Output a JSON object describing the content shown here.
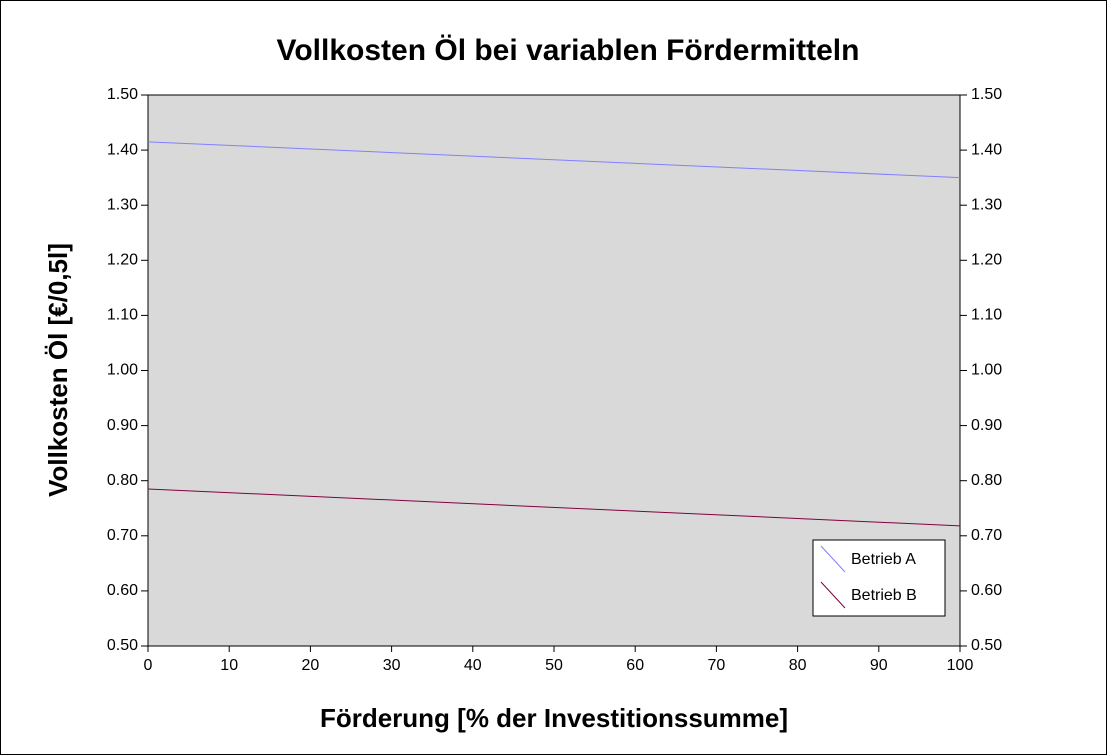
{
  "chart_data": {
    "type": "line",
    "title": "Vollkosten Öl bei variablen Fördermitteln",
    "xlabel": "Förderung [% der Investitionssumme]",
    "ylabel": "Vollkosten Öl [€/0,5l]",
    "x": [
      0,
      100
    ],
    "series": [
      {
        "name": "Betrieb A",
        "color": "#8080ff",
        "values": [
          1.415,
          1.35
        ]
      },
      {
        "name": "Betrieb B",
        "color": "#800040",
        "values": [
          0.785,
          0.718
        ]
      }
    ],
    "xlim": [
      0,
      100
    ],
    "xticks": [
      0,
      10,
      20,
      30,
      40,
      50,
      60,
      70,
      80,
      90,
      100
    ],
    "ylim": [
      0.5,
      1.5
    ],
    "yticks": [
      {
        "value": 0.5,
        "label": "0.50"
      },
      {
        "value": 0.6,
        "label": "0.60"
      },
      {
        "value": 0.7,
        "label": "0.70"
      },
      {
        "value": 0.8,
        "label": "0.80"
      },
      {
        "value": 0.9,
        "label": "0.90"
      },
      {
        "value": 1.0,
        "label": "1.00"
      },
      {
        "value": 1.1,
        "label": "1.10"
      },
      {
        "value": 1.2,
        "label": "1.20"
      },
      {
        "value": 1.3,
        "label": "1.30"
      },
      {
        "value": 1.4,
        "label": "1.40"
      },
      {
        "value": 1.5,
        "label": "1.50"
      }
    ],
    "legend": "lower right",
    "plot_background": "#d9d9d9"
  }
}
